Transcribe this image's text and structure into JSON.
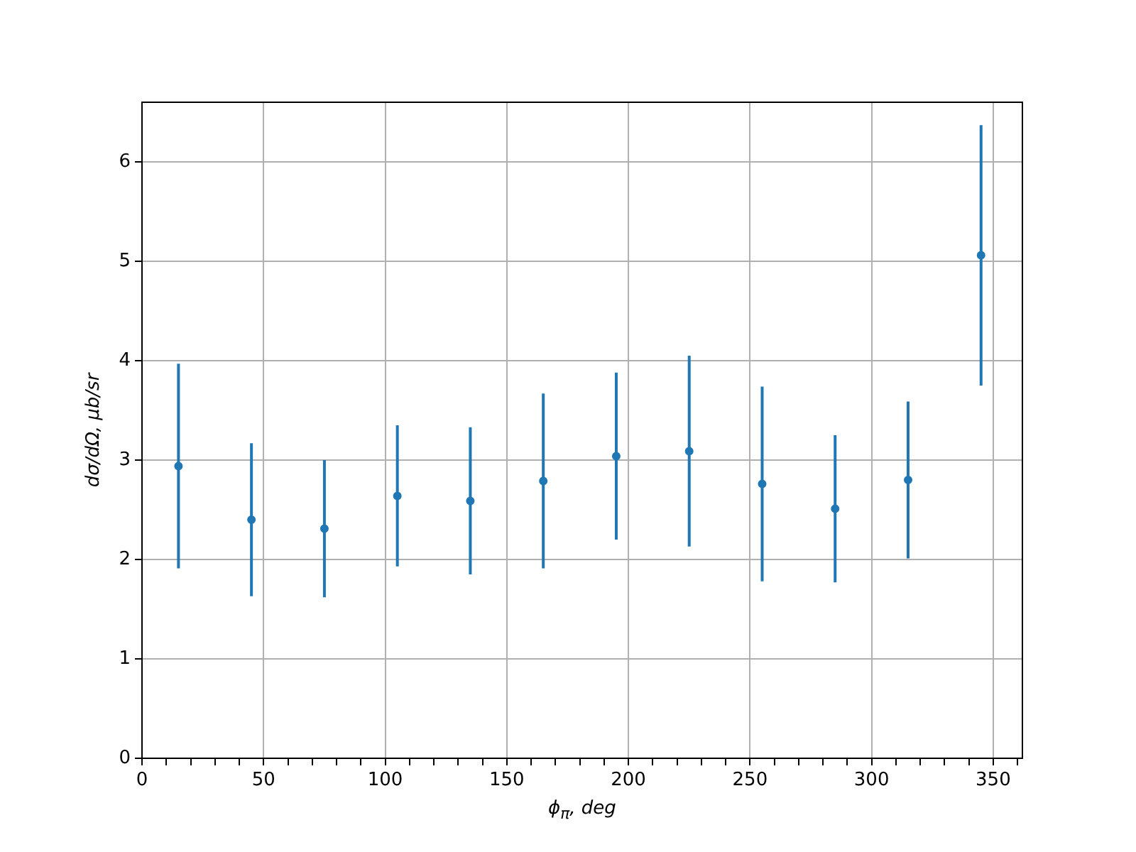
{
  "chart_data": {
    "type": "scatter",
    "xlabel": "ϕ$_{π}$, deg",
    "ylabel": "dσ/dΩ, μb/sr",
    "x": [
      15,
      45,
      75,
      105,
      135,
      165,
      195,
      225,
      255,
      285,
      315,
      345
    ],
    "series": [
      {
        "color": "#1f77b4",
        "values": [
          2.94,
          2.4,
          2.31,
          2.64,
          2.59,
          2.79,
          3.04,
          3.09,
          2.76,
          2.51,
          2.8,
          5.06
        ],
        "errors": [
          1.03,
          0.77,
          0.69,
          0.71,
          0.74,
          0.88,
          0.84,
          0.96,
          0.98,
          0.74,
          0.79,
          1.31
        ]
      }
    ],
    "xlim": [
      0,
      362
    ],
    "ylim": [
      0,
      6.6
    ],
    "xticks": [
      0,
      {
        "value": 10,
        "label": null
      },
      {
        "value": 20,
        "label": null
      },
      {
        "value": 30,
        "label": null
      },
      {
        "value": 40,
        "label": null
      },
      50,
      {
        "value": 60,
        "label": null
      },
      {
        "value": 70,
        "label": null
      },
      {
        "value": 80,
        "label": null
      },
      {
        "value": 90,
        "label": null
      },
      100,
      {
        "value": 110,
        "label": null
      },
      {
        "value": 120,
        "label": null
      },
      {
        "value": 130,
        "label": null
      },
      {
        "value": 140,
        "label": null
      },
      150,
      {
        "value": 160,
        "label": null
      },
      {
        "value": 170,
        "label": null
      },
      {
        "value": 180,
        "label": null
      },
      {
        "value": 190,
        "label": null
      },
      200,
      {
        "value": 210,
        "label": null
      },
      {
        "value": 220,
        "label": null
      },
      {
        "value": 230,
        "label": null
      },
      {
        "value": 240,
        "label": null
      },
      250,
      {
        "value": 260,
        "label": null
      },
      {
        "value": 270,
        "label": null
      },
      {
        "value": 280,
        "label": null
      },
      {
        "value": 290,
        "label": null
      },
      300,
      {
        "value": 310,
        "label": null
      },
      {
        "value": 320,
        "label": null
      },
      {
        "value": 330,
        "label": null
      },
      {
        "value": 340,
        "label": null
      },
      350,
      {
        "value": 360,
        "label": null
      }
    ],
    "yticks": [
      0,
      1,
      2,
      3,
      4,
      5,
      6
    ],
    "grid": true,
    "marker": "circle"
  }
}
